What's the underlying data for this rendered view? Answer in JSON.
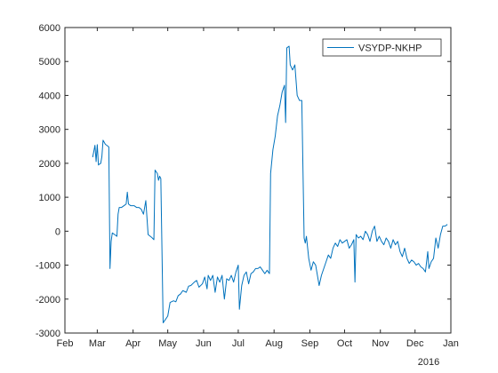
{
  "chart_data": {
    "type": "line",
    "title": "",
    "xlabel": "",
    "ylabel": "",
    "year_label": "2016",
    "xlim": [
      "2015-02-01",
      "2016-01-01"
    ],
    "ylim": [
      -3000,
      6000
    ],
    "x_tick_labels": [
      {
        "date": "2015-02-01",
        "label": "Feb"
      },
      {
        "date": "2015-03-01",
        "label": "Mar"
      },
      {
        "date": "2015-04-01",
        "label": "Apr"
      },
      {
        "date": "2015-05-01",
        "label": "May"
      },
      {
        "date": "2015-06-01",
        "label": "Jun"
      },
      {
        "date": "2015-07-01",
        "label": "Jul"
      },
      {
        "date": "2015-08-01",
        "label": "Aug"
      },
      {
        "date": "2015-09-01",
        "label": "Sep"
      },
      {
        "date": "2015-10-01",
        "label": "Oct"
      },
      {
        "date": "2015-11-01",
        "label": "Nov"
      },
      {
        "date": "2015-12-01",
        "label": "Dec"
      },
      {
        "date": "2016-01-01",
        "label": "Jan"
      }
    ],
    "y_ticks": [
      -3000,
      -2000,
      -1000,
      0,
      1000,
      2000,
      3000,
      4000,
      5000,
      6000
    ],
    "grid": false,
    "legend": {
      "position": "top-right"
    },
    "series": [
      {
        "name": "VSYDP-NKHP",
        "color": "#0072BD",
        "points": [
          [
            "2015-02-25",
            2180
          ],
          [
            "2015-02-26",
            2350
          ],
          [
            "2015-02-27",
            2530
          ],
          [
            "2015-02-28",
            2050
          ],
          [
            "2015-03-01",
            2550
          ],
          [
            "2015-03-02",
            1950
          ],
          [
            "2015-03-03",
            1980
          ],
          [
            "2015-03-04",
            2000
          ],
          [
            "2015-03-05",
            2200
          ],
          [
            "2015-03-06",
            2680
          ],
          [
            "2015-03-08",
            2560
          ],
          [
            "2015-03-10",
            2510
          ],
          [
            "2015-03-11",
            2480
          ],
          [
            "2015-03-12",
            -1100
          ],
          [
            "2015-03-13",
            -300
          ],
          [
            "2015-03-14",
            -50
          ],
          [
            "2015-03-16",
            -100
          ],
          [
            "2015-03-18",
            -150
          ],
          [
            "2015-03-19",
            500
          ],
          [
            "2015-03-20",
            700
          ],
          [
            "2015-03-22",
            700
          ],
          [
            "2015-03-24",
            750
          ],
          [
            "2015-03-26",
            800
          ],
          [
            "2015-03-27",
            1150
          ],
          [
            "2015-03-28",
            800
          ],
          [
            "2015-03-30",
            750
          ],
          [
            "2015-04-02",
            750
          ],
          [
            "2015-04-04",
            700
          ],
          [
            "2015-04-06",
            700
          ],
          [
            "2015-04-08",
            650
          ],
          [
            "2015-04-10",
            500
          ],
          [
            "2015-04-12",
            900
          ],
          [
            "2015-04-14",
            -100
          ],
          [
            "2015-04-17",
            -180
          ],
          [
            "2015-04-19",
            -250
          ],
          [
            "2015-04-20",
            1800
          ],
          [
            "2015-04-22",
            1700
          ],
          [
            "2015-04-23",
            1500
          ],
          [
            "2015-04-24",
            1620
          ],
          [
            "2015-04-25",
            1550
          ],
          [
            "2015-04-27",
            -2700
          ],
          [
            "2015-04-29",
            -2600
          ],
          [
            "2015-05-01",
            -2500
          ],
          [
            "2015-05-03",
            -2100
          ],
          [
            "2015-05-06",
            -2050
          ],
          [
            "2015-05-08",
            -2080
          ],
          [
            "2015-05-10",
            -1900
          ],
          [
            "2015-05-12",
            -1850
          ],
          [
            "2015-05-14",
            -1750
          ],
          [
            "2015-05-17",
            -1800
          ],
          [
            "2015-05-19",
            -1620
          ],
          [
            "2015-05-21",
            -1600
          ],
          [
            "2015-05-24",
            -1500
          ],
          [
            "2015-05-26",
            -1450
          ],
          [
            "2015-05-28",
            -1650
          ],
          [
            "2015-05-31",
            -1550
          ],
          [
            "2015-06-02",
            -1350
          ],
          [
            "2015-06-04",
            -1700
          ],
          [
            "2015-06-05",
            -1300
          ],
          [
            "2015-06-07",
            -1450
          ],
          [
            "2015-06-09",
            -1300
          ],
          [
            "2015-06-11",
            -1800
          ],
          [
            "2015-06-13",
            -1350
          ],
          [
            "2015-06-15",
            -1500
          ],
          [
            "2015-06-17",
            -1300
          ],
          [
            "2015-06-19",
            -2000
          ],
          [
            "2015-06-21",
            -1400
          ],
          [
            "2015-06-23",
            -1450
          ],
          [
            "2015-06-25",
            -1300
          ],
          [
            "2015-06-27",
            -1500
          ],
          [
            "2015-06-29",
            -1200
          ],
          [
            "2015-07-01",
            -1000
          ],
          [
            "2015-07-02",
            -2300
          ],
          [
            "2015-07-04",
            -1600
          ],
          [
            "2015-07-06",
            -1300
          ],
          [
            "2015-07-08",
            -1200
          ],
          [
            "2015-07-10",
            -1550
          ],
          [
            "2015-07-12",
            -1250
          ],
          [
            "2015-07-14",
            -1200
          ],
          [
            "2015-07-16",
            -1100
          ],
          [
            "2015-07-18",
            -1100
          ],
          [
            "2015-07-20",
            -1050
          ],
          [
            "2015-07-22",
            -1150
          ],
          [
            "2015-07-24",
            -1250
          ],
          [
            "2015-07-26",
            -1150
          ],
          [
            "2015-07-28",
            -1250
          ],
          [
            "2015-07-29",
            1700
          ],
          [
            "2015-07-31",
            2400
          ],
          [
            "2015-08-02",
            2800
          ],
          [
            "2015-08-04",
            3400
          ],
          [
            "2015-08-06",
            3700
          ],
          [
            "2015-08-08",
            4100
          ],
          [
            "2015-08-10",
            4300
          ],
          [
            "2015-08-11",
            3200
          ],
          [
            "2015-08-12",
            5400
          ],
          [
            "2015-08-14",
            5450
          ],
          [
            "2015-08-15",
            4900
          ],
          [
            "2015-08-17",
            4750
          ],
          [
            "2015-08-19",
            4900
          ],
          [
            "2015-08-21",
            4000
          ],
          [
            "2015-08-23",
            3850
          ],
          [
            "2015-08-25",
            3850
          ],
          [
            "2015-08-27",
            -200
          ],
          [
            "2015-08-28",
            -350
          ],
          [
            "2015-08-29",
            -150
          ],
          [
            "2015-08-31",
            -800
          ],
          [
            "2015-09-02",
            -1150
          ],
          [
            "2015-09-04",
            -900
          ],
          [
            "2015-09-06",
            -1000
          ],
          [
            "2015-09-08",
            -1400
          ],
          [
            "2015-09-09",
            -1600
          ],
          [
            "2015-09-11",
            -1300
          ],
          [
            "2015-09-13",
            -1100
          ],
          [
            "2015-09-15",
            -900
          ],
          [
            "2015-09-17",
            -700
          ],
          [
            "2015-09-19",
            -800
          ],
          [
            "2015-09-21",
            -500
          ],
          [
            "2015-09-23",
            -350
          ],
          [
            "2015-09-25",
            -450
          ],
          [
            "2015-09-27",
            -250
          ],
          [
            "2015-09-29",
            -350
          ],
          [
            "2015-10-01",
            -300
          ],
          [
            "2015-10-03",
            -250
          ],
          [
            "2015-10-05",
            -500
          ],
          [
            "2015-10-07",
            -400
          ],
          [
            "2015-10-09",
            -250
          ],
          [
            "2015-10-10",
            -1500
          ],
          [
            "2015-10-11",
            -100
          ],
          [
            "2015-10-13",
            -200
          ],
          [
            "2015-10-15",
            -150
          ],
          [
            "2015-10-17",
            -250
          ],
          [
            "2015-10-19",
            0
          ],
          [
            "2015-10-21",
            -100
          ],
          [
            "2015-10-23",
            -300
          ],
          [
            "2015-10-25",
            0
          ],
          [
            "2015-10-27",
            150
          ],
          [
            "2015-10-29",
            -300
          ],
          [
            "2015-10-31",
            -150
          ],
          [
            "2015-11-02",
            -300
          ],
          [
            "2015-11-04",
            -400
          ],
          [
            "2015-11-06",
            -200
          ],
          [
            "2015-11-08",
            -300
          ],
          [
            "2015-11-10",
            -500
          ],
          [
            "2015-11-12",
            -250
          ],
          [
            "2015-11-14",
            -400
          ],
          [
            "2015-11-16",
            -300
          ],
          [
            "2015-11-18",
            -600
          ],
          [
            "2015-11-20",
            -750
          ],
          [
            "2015-11-22",
            -500
          ],
          [
            "2015-11-24",
            -800
          ],
          [
            "2015-11-26",
            -950
          ],
          [
            "2015-11-28",
            -850
          ],
          [
            "2015-11-30",
            -900
          ],
          [
            "2015-12-02",
            -1000
          ],
          [
            "2015-12-04",
            -950
          ],
          [
            "2015-12-06",
            -1050
          ],
          [
            "2015-12-08",
            -1100
          ],
          [
            "2015-12-10",
            -1200
          ],
          [
            "2015-12-12",
            -600
          ],
          [
            "2015-12-13",
            -1100
          ],
          [
            "2015-12-15",
            -900
          ],
          [
            "2015-12-17",
            -800
          ],
          [
            "2015-12-19",
            -200
          ],
          [
            "2015-12-21",
            -500
          ],
          [
            "2015-12-23",
            -100
          ],
          [
            "2015-12-25",
            150
          ],
          [
            "2015-12-27",
            150
          ],
          [
            "2015-12-29",
            200
          ]
        ]
      }
    ]
  }
}
